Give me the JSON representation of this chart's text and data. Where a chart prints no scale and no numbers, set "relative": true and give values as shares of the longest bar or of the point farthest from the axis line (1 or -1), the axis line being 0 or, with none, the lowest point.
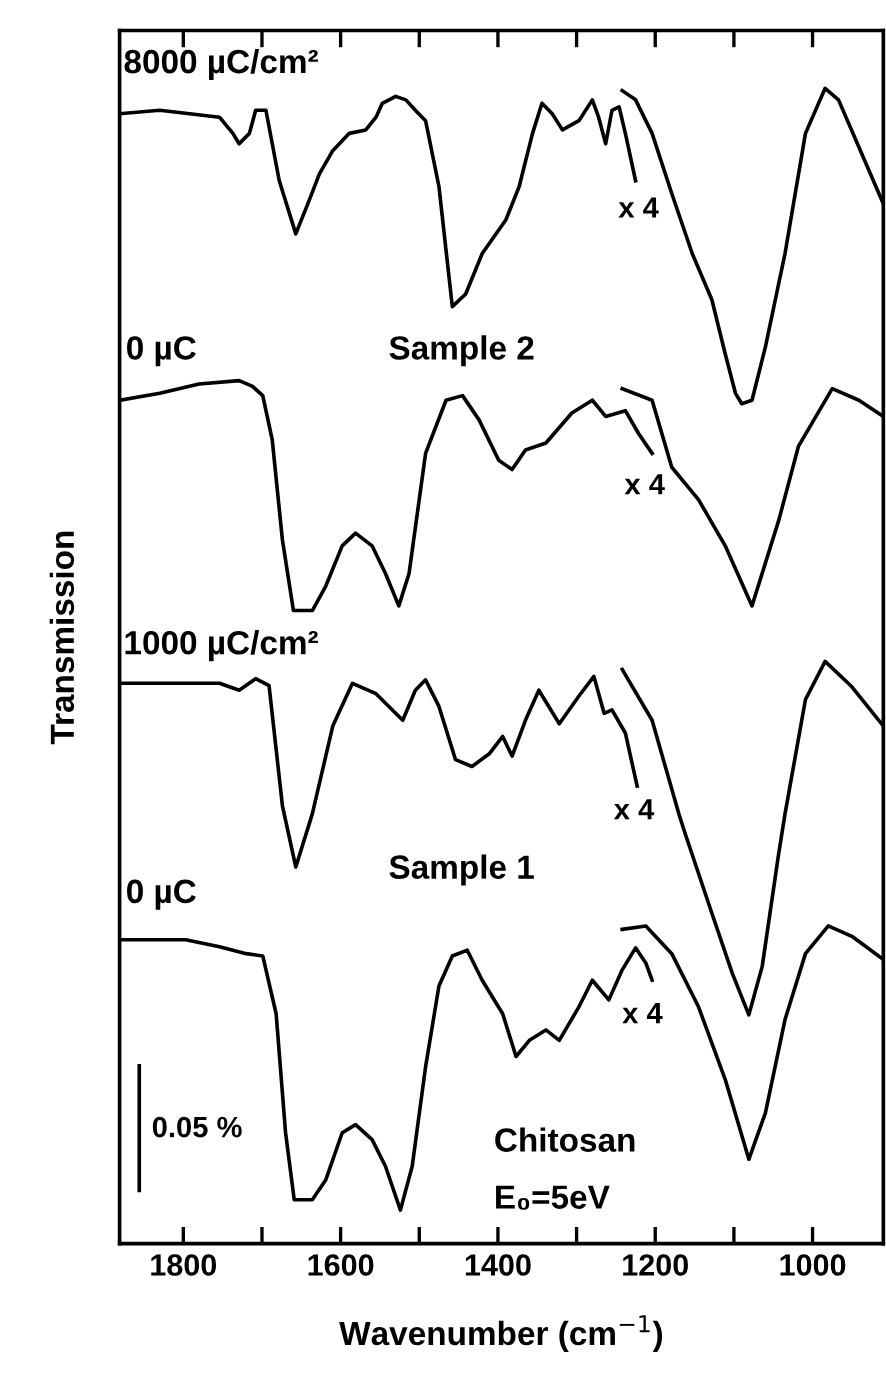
{
  "chart_data": {
    "type": "line",
    "relative": true,
    "xlabel": "Wavenumber (cm$^{−1}$)",
    "ylabel": "Transmission",
    "xlim": [
      1881,
      910
    ],
    "xticks": [
      1800,
      {
        "value": 1700,
        "label": null
      },
      1600,
      {
        "value": 1500,
        "label": null
      },
      1400,
      {
        "value": 1300,
        "label": null
      },
      1200,
      {
        "value": 1100,
        "label": null
      },
      1000
    ],
    "tick_labels": "x",
    "grid": false,
    "marker": "none",
    "line_style": "solid",
    "series": [
      {
        "color": "#000000",
        "x": [
          1881,
          1830,
          1754,
          1737,
          1729,
          1716,
          1708,
          1695,
          1678,
          1657,
          1640,
          1627,
          1610,
          1589,
          1568,
          1555,
          1547,
          1530,
          1517,
          1505,
          1492,
          1475,
          1458,
          1441,
          1420,
          1390,
          1373,
          1356,
          1344,
          1331,
          1318,
          1297,
          1280,
          1272,
          1263,
          1255,
          1246,
          1238,
          1225
        ],
        "values": [
          0.978,
          0.981,
          0.975,
          0.961,
          0.952,
          0.961,
          0.981,
          0.981,
          0.92,
          0.874,
          0.903,
          0.926,
          0.946,
          0.961,
          0.964,
          0.975,
          0.987,
          0.993,
          0.99,
          0.981,
          0.972,
          0.915,
          0.811,
          0.822,
          0.857,
          0.886,
          0.915,
          0.961,
          0.987,
          0.978,
          0.964,
          0.972,
          0.99,
          0.975,
          0.952,
          0.981,
          0.984,
          0.961,
          0.92
        ]
      },
      {
        "color": "#000000",
        "x": [
          1242,
          1225,
          1204,
          1179,
          1153,
          1128,
          1111,
          1098,
          1090,
          1077,
          1060,
          1035,
          1009,
          984,
          967,
          941,
          910
        ],
        "values": [
          0.998,
          0.99,
          0.961,
          0.909,
          0.857,
          0.817,
          0.77,
          0.736,
          0.727,
          0.73,
          0.776,
          0.857,
          0.961,
          1.0,
          0.99,
          0.949,
          0.9
        ]
      },
      {
        "color": "#000000",
        "x": [
          1881,
          1830,
          1780,
          1729,
          1712,
          1699,
          1687,
          1674,
          1660,
          1636,
          1619,
          1598,
          1581,
          1560,
          1543,
          1526,
          1513,
          1492,
          1466,
          1445,
          1424,
          1399,
          1382,
          1365,
          1339,
          1306,
          1280,
          1263,
          1238,
          1221,
          1204
        ],
        "values": [
          0.73,
          0.736,
          0.744,
          0.747,
          0.742,
          0.734,
          0.696,
          0.609,
          0.548,
          0.548,
          0.569,
          0.604,
          0.615,
          0.604,
          0.58,
          0.552,
          0.58,
          0.684,
          0.73,
          0.734,
          0.713,
          0.678,
          0.67,
          0.687,
          0.693,
          0.719,
          0.73,
          0.716,
          0.721,
          0.701,
          0.684
        ]
      },
      {
        "color": "#000000",
        "x": [
          1242,
          1204,
          1179,
          1145,
          1111,
          1077,
          1043,
          1018,
          975,
          941,
          910
        ],
        "values": [
          0.74,
          0.73,
          0.672,
          0.644,
          0.604,
          0.552,
          0.626,
          0.69,
          0.74,
          0.73,
          0.716
        ]
      },
      {
        "color": "#000000",
        "x": [
          1881,
          1754,
          1729,
          1708,
          1691,
          1674,
          1657,
          1636,
          1610,
          1585,
          1555,
          1521,
          1505,
          1492,
          1475,
          1454,
          1433,
          1411,
          1394,
          1382,
          1365,
          1348,
          1322,
          1297,
          1278,
          1265,
          1255,
          1238,
          1223
        ],
        "values": [
          0.485,
          0.485,
          0.479,
          0.489,
          0.483,
          0.379,
          0.326,
          0.372,
          0.448,
          0.485,
          0.476,
          0.453,
          0.479,
          0.488,
          0.465,
          0.419,
          0.413,
          0.424,
          0.439,
          0.422,
          0.453,
          0.479,
          0.45,
          0.474,
          0.491,
          0.459,
          0.462,
          0.442,
          0.396
        ]
      },
      {
        "color": "#000000",
        "x": [
          1242,
          1204,
          1170,
          1162,
          1128,
          1102,
          1081,
          1064,
          1043,
          1035,
          1009,
          984,
          950,
          910
        ],
        "values": [
          0.497,
          0.453,
          0.372,
          0.355,
          0.286,
          0.234,
          0.198,
          0.24,
          0.338,
          0.372,
          0.471,
          0.504,
          0.482,
          0.448
        ]
      },
      {
        "color": "#000000",
        "x": [
          1881,
          1847,
          1797,
          1754,
          1720,
          1699,
          1682,
          1670,
          1659,
          1636,
          1619,
          1598,
          1581,
          1560,
          1543,
          1524,
          1509,
          1492,
          1475,
          1458,
          1439,
          1420,
          1394,
          1377,
          1360,
          1339,
          1322,
          1297,
          1280,
          1259,
          1242,
          1225,
          1212,
          1204
        ],
        "values": [
          0.263,
          0.263,
          0.263,
          0.257,
          0.251,
          0.249,
          0.199,
          0.096,
          0.038,
          0.038,
          0.055,
          0.096,
          0.103,
          0.09,
          0.067,
          0.029,
          0.067,
          0.153,
          0.223,
          0.249,
          0.254,
          0.228,
          0.199,
          0.162,
          0.176,
          0.185,
          0.176,
          0.205,
          0.228,
          0.211,
          0.237,
          0.256,
          0.243,
          0.228
        ]
      },
      {
        "color": "#000000",
        "x": [
          1242,
          1212,
          1179,
          1145,
          1111,
          1081,
          1060,
          1035,
          1009,
          980,
          950,
          910
        ],
        "values": [
          0.272,
          0.275,
          0.251,
          0.205,
          0.142,
          0.073,
          0.113,
          0.194,
          0.251,
          0.275,
          0.266,
          0.246
        ]
      },
      {
        "color": "#000000",
        "x": [
          1856,
          1856
        ],
        "values": [
          0.046,
          0.154
        ]
      }
    ],
    "annotations": [
      "8000 µC/cm²",
      "0 µC",
      "Sample 2",
      "x 4",
      "x 4",
      "1000 µC/cm²",
      "x 4",
      "Sample 1",
      "0 µC",
      "x 4",
      "0.05 %",
      "Chitosan",
      "E₀=5eV"
    ]
  }
}
